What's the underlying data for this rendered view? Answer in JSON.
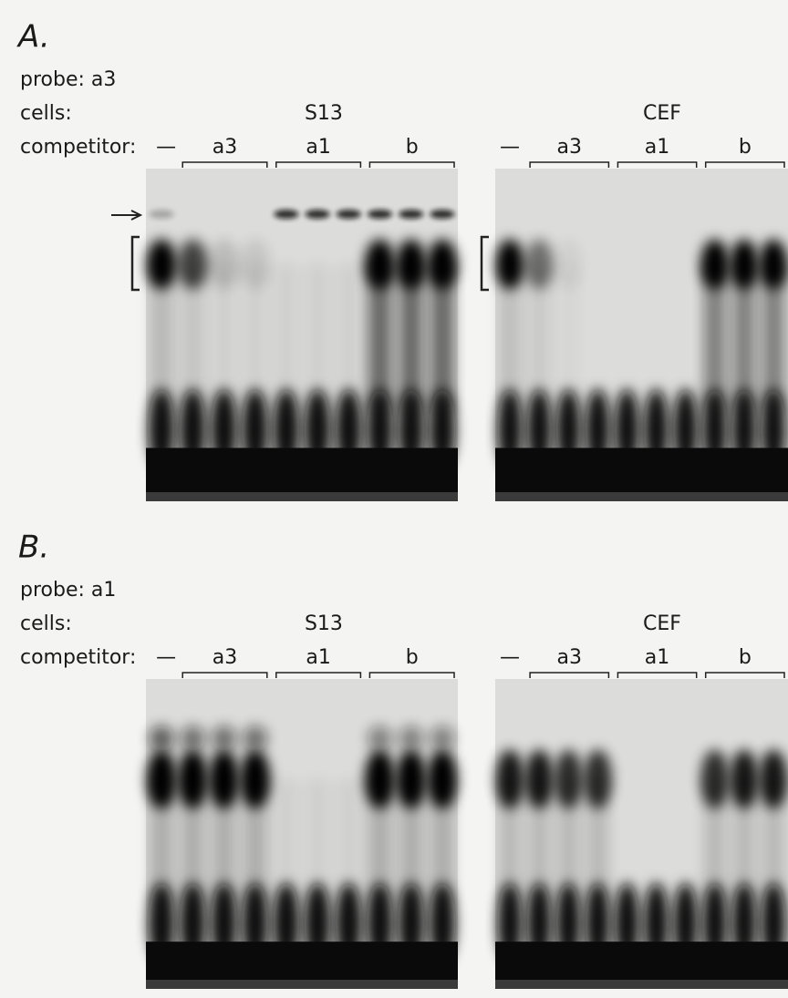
{
  "panels": [
    {
      "label": "A.",
      "probe": "probe: a3",
      "cells_label": "cells:",
      "competitor_label": "competitor:",
      "gels": [
        {
          "cells": "S13",
          "no_competitor": "—",
          "competitors": [
            "a3",
            "a1",
            "b"
          ]
        },
        {
          "cells": "CEF",
          "no_competitor": "—",
          "competitors": [
            "a3",
            "a1",
            "b"
          ]
        }
      ]
    },
    {
      "label": "B.",
      "probe": "probe: a1",
      "cells_label": "cells:",
      "competitor_label": "competitor:",
      "gels": [
        {
          "cells": "S13",
          "no_competitor": "—",
          "competitors": [
            "a3",
            "a1",
            "b"
          ]
        },
        {
          "cells": "CEF",
          "no_competitor": "—",
          "competitors": [
            "a3",
            "a1",
            "b"
          ]
        }
      ]
    }
  ]
}
